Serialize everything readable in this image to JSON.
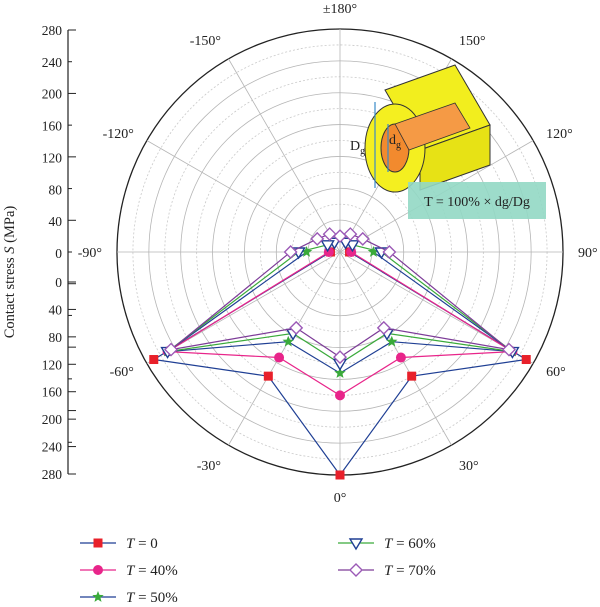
{
  "chart_data": {
    "type": "polar-line",
    "ylabel_text": "Contact stress ",
    "ylabel_var": "S",
    "ylabel_unit": " (MPa)",
    "r_ticks": [
      "280",
      "240",
      "200",
      "160",
      "120",
      "80",
      "40",
      "0"
    ],
    "r_range": [
      0,
      280
    ],
    "angle_labels": [
      {
        "deg": 180,
        "text": "±180°"
      },
      {
        "deg": 150,
        "text": "150°"
      },
      {
        "deg": 120,
        "text": "120°"
      },
      {
        "deg": 90,
        "text": "90°"
      },
      {
        "deg": 60,
        "text": "60°"
      },
      {
        "deg": 30,
        "text": "30°"
      },
      {
        "deg": 0,
        "text": "0°"
      },
      {
        "deg": -30,
        "text": "-30°"
      },
      {
        "deg": -60,
        "text": "-60°"
      },
      {
        "deg": -90,
        "text": "-90°"
      },
      {
        "deg": -120,
        "text": "-120°"
      },
      {
        "deg": -150,
        "text": "-150°"
      }
    ],
    "inset": {
      "big_label": "D",
      "big_sub": "g",
      "small_label": "d",
      "small_sub": "g",
      "formula": "T = 100% × dg/Dg"
    },
    "series": [
      {
        "name": "T = 0",
        "var": "T",
        "value": " = 0",
        "color": "#1f3f94",
        "marker_color": "#e8202a",
        "marker": "square",
        "points": [
          [
            -90,
            12
          ],
          [
            -60,
            270
          ],
          [
            -30,
            180
          ],
          [
            0,
            280
          ],
          [
            30,
            180
          ],
          [
            60,
            270
          ],
          [
            90,
            12
          ]
        ]
      },
      {
        "name": "T = 40%",
        "var": "T",
        "value": " = 40%",
        "color": "#e8258a",
        "marker_color": "#e8258a",
        "marker": "circle",
        "points": [
          [
            -90,
            14
          ],
          [
            -60,
            250
          ],
          [
            -30,
            153
          ],
          [
            0,
            180
          ],
          [
            30,
            153
          ],
          [
            60,
            250
          ],
          [
            90,
            14
          ]
        ]
      },
      {
        "name": "T = 50%",
        "var": "T",
        "value": " = 50%",
        "color": "#1f3f94",
        "marker_color": "#3aaa3a",
        "marker": "star",
        "points": [
          [
            -90,
            42
          ],
          [
            -60,
            250
          ],
          [
            -30,
            130
          ],
          [
            0,
            152
          ],
          [
            30,
            130
          ],
          [
            60,
            250
          ],
          [
            90,
            42
          ]
        ]
      },
      {
        "name": "T = 60%",
        "var": "T",
        "value": " = 60%",
        "color": "#3aaa3a",
        "marker_color": "#1f3f94",
        "marker": "triangle-down",
        "points": [
          [
            -150,
            14
          ],
          [
            -120,
            18
          ],
          [
            -90,
            52
          ],
          [
            -60,
            250
          ],
          [
            -30,
            118
          ],
          [
            0,
            140
          ],
          [
            30,
            118
          ],
          [
            60,
            250
          ],
          [
            90,
            52
          ],
          [
            120,
            18
          ],
          [
            150,
            14
          ]
        ]
      },
      {
        "name": "T = 70%",
        "var": "T",
        "value": " = 70%",
        "color": "#7d3c98",
        "marker_color": "#9b59b6",
        "marker": "diamond",
        "points": [
          [
            180,
            20
          ],
          [
            -150,
            26
          ],
          [
            -120,
            33
          ],
          [
            -90,
            62
          ],
          [
            -60,
            245
          ],
          [
            -30,
            110
          ],
          [
            0,
            132
          ],
          [
            30,
            110
          ],
          [
            60,
            245
          ],
          [
            90,
            62
          ],
          [
            120,
            33
          ],
          [
            150,
            26
          ]
        ]
      }
    ]
  }
}
